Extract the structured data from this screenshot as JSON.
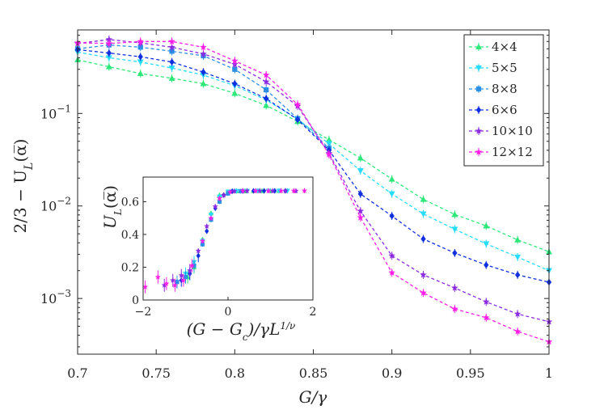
{
  "chart_data": [
    {
      "type": "line",
      "role": "main",
      "title": "",
      "xlabel": "G/γ",
      "ylabel_parts": {
        "a": "2/3 − U",
        "sub": "L",
        "b": "(α̅)"
      },
      "xlim": [
        0.7,
        1.0
      ],
      "ylim": [
        0.00025,
        0.8
      ],
      "yscale": "log",
      "xticks": [
        0.7,
        0.75,
        0.8,
        0.85,
        0.9,
        0.95,
        1.0
      ],
      "xtick_labels": [
        "0.7",
        "0.75",
        "0.8",
        "0.85",
        "0.9",
        "0.95",
        "1"
      ],
      "yticks": [
        0.001,
        0.01,
        0.1
      ],
      "ytick_labels": [
        {
          "base": "10",
          "exp": "−3"
        },
        {
          "base": "10",
          "exp": "−2"
        },
        {
          "base": "10",
          "exp": "−1"
        }
      ],
      "legend_position": "top-right",
      "series": [
        {
          "name": "4×4",
          "color": "#2ee87a",
          "marker": "triangle-up",
          "x": [
            0.7,
            0.72,
            0.74,
            0.76,
            0.78,
            0.8,
            0.82,
            0.84,
            0.86,
            0.88,
            0.9,
            0.92,
            0.94,
            0.96,
            0.98,
            1.0
          ],
          "y": [
            0.38,
            0.32,
            0.27,
            0.24,
            0.21,
            0.165,
            0.122,
            0.082,
            0.052,
            0.033,
            0.0195,
            0.0118,
            0.0081,
            0.0061,
            0.0043,
            0.0032
          ]
        },
        {
          "name": "5×5",
          "color": "#26dcff",
          "marker": "triangle-down",
          "x": [
            0.7,
            0.72,
            0.74,
            0.76,
            0.78,
            0.8,
            0.82,
            0.84,
            0.86,
            0.88,
            0.9,
            0.92,
            0.94,
            0.96,
            0.98,
            1.0
          ],
          "y": [
            0.46,
            0.4,
            0.36,
            0.31,
            0.26,
            0.2,
            0.14,
            0.087,
            0.047,
            0.024,
            0.0135,
            0.0082,
            0.0056,
            0.0039,
            0.0028,
            0.002
          ]
        },
        {
          "name": "8×8",
          "color": "#2b8fe6",
          "marker": "square",
          "x": [
            0.7,
            0.72,
            0.74,
            0.76,
            0.78,
            0.8,
            0.82,
            0.84,
            0.86
          ],
          "y": [
            0.5,
            0.55,
            0.52,
            0.47,
            0.42,
            0.3,
            0.18,
            0.088,
            0.042
          ]
        },
        {
          "name": "6×6",
          "color": "#1030e0",
          "marker": "diamond",
          "x": [
            0.7,
            0.72,
            0.74,
            0.76,
            0.78,
            0.8,
            0.82,
            0.84,
            0.86,
            0.88,
            0.9,
            0.92,
            0.94,
            0.96,
            0.98,
            1.0
          ],
          "y": [
            0.49,
            0.45,
            0.41,
            0.36,
            0.28,
            0.21,
            0.145,
            0.086,
            0.04,
            0.0135,
            0.0078,
            0.0044,
            0.0031,
            0.0023,
            0.0018,
            0.0015
          ]
        },
        {
          "name": "10×10",
          "color": "#8a2be2",
          "marker": "star",
          "x": [
            0.7,
            0.72,
            0.74,
            0.76,
            0.78,
            0.8,
            0.82,
            0.84,
            0.86,
            0.88,
            0.9,
            0.92,
            0.94,
            0.96,
            0.98,
            1.0
          ],
          "y": [
            0.57,
            0.63,
            0.58,
            0.52,
            0.44,
            0.34,
            0.22,
            0.12,
            0.037,
            0.0088,
            0.0029,
            0.0018,
            0.0013,
            0.00092,
            0.00068,
            0.00056
          ]
        },
        {
          "name": "12×12",
          "color": "#ff1ee8",
          "marker": "star",
          "x": [
            0.7,
            0.72,
            0.74,
            0.76,
            0.78,
            0.8,
            0.82,
            0.84,
            0.86,
            0.88,
            0.9,
            0.92,
            0.94,
            0.96,
            0.98,
            1.0
          ],
          "y": [
            0.58,
            0.57,
            0.6,
            0.6,
            0.52,
            0.37,
            0.26,
            0.125,
            0.036,
            0.0075,
            0.0019,
            0.00115,
            0.00077,
            0.00062,
            0.00044,
            0.00034
          ]
        }
      ]
    },
    {
      "type": "scatter",
      "role": "inset",
      "title": "",
      "xlabel_parts": {
        "a": "(G − G",
        "sub": "c",
        "b": ")/γL",
        "sup": "1/ν"
      },
      "ylabel_parts": {
        "a": "U",
        "sub": "L",
        "b": "(α̅)"
      },
      "xlim": [
        -2,
        2
      ],
      "ylim": [
        0,
        0.75
      ],
      "xticks": [
        -2,
        0,
        2
      ],
      "xtick_labels": [
        "−2",
        "0",
        "2"
      ],
      "yticks": [
        0,
        0.2,
        0.4,
        0.6
      ],
      "ytick_labels": [
        "0",
        "0.2",
        "0.4",
        "0.6"
      ],
      "series": [
        {
          "name": "4×4",
          "color": "#2ee87a",
          "x": [
            -0.95,
            -0.8,
            -0.6,
            -0.4,
            -0.2,
            0.0,
            0.2,
            0.4,
            0.6,
            0.8,
            1.0,
            1.2
          ],
          "y": [
            0.14,
            0.2,
            0.37,
            0.53,
            0.64,
            0.66,
            0.665,
            0.665,
            0.666,
            0.666,
            0.666,
            0.666
          ]
        },
        {
          "name": "5×5",
          "color": "#26dcff",
          "x": [
            -1.0,
            -0.8,
            -0.6,
            -0.4,
            -0.2,
            0.0,
            0.2,
            0.45,
            0.7,
            0.95,
            1.2,
            1.4
          ],
          "y": [
            0.16,
            0.23,
            0.36,
            0.52,
            0.63,
            0.66,
            0.665,
            0.665,
            0.666,
            0.666,
            0.666,
            0.666
          ]
        },
        {
          "name": "8×8",
          "color": "#2b8fe6",
          "x": [
            -1.2,
            -1.0,
            -0.8,
            -0.6,
            -0.4,
            -0.2,
            0.0,
            0.3
          ],
          "y": [
            0.11,
            0.14,
            0.21,
            0.34,
            0.49,
            0.6,
            0.65,
            0.664
          ]
        },
        {
          "name": "6×6",
          "color": "#1030e0",
          "x": [
            -1.1,
            -0.9,
            -0.7,
            -0.5,
            -0.3,
            -0.1,
            0.1,
            0.35,
            0.6,
            0.85,
            1.1,
            1.35
          ],
          "y": [
            0.12,
            0.16,
            0.27,
            0.42,
            0.56,
            0.64,
            0.664,
            0.665,
            0.666,
            0.666,
            0.666,
            0.666
          ]
        },
        {
          "name": "10×10",
          "color": "#8a2be2",
          "x": [
            -1.5,
            -1.3,
            -1.1,
            -0.9,
            -0.7,
            -0.5,
            -0.3,
            -0.1,
            0.15,
            0.45,
            0.75,
            1.05,
            1.35,
            1.6
          ],
          "y": [
            0.09,
            0.12,
            0.15,
            0.18,
            0.3,
            0.45,
            0.57,
            0.64,
            0.664,
            0.666,
            0.666,
            0.666,
            0.666,
            0.666
          ]
        },
        {
          "name": "12×12",
          "color": "#ff1ee8",
          "x": [
            -1.95,
            -1.65,
            -1.45,
            -1.25,
            -1.05,
            -0.85,
            -0.6,
            -0.4,
            -0.2,
            0.05,
            0.35,
            0.65,
            0.95,
            1.25,
            1.55,
            1.8
          ],
          "y": [
            0.08,
            0.14,
            0.1,
            0.09,
            0.12,
            0.21,
            0.36,
            0.5,
            0.62,
            0.66,
            0.666,
            0.666,
            0.666,
            0.666,
            0.666,
            0.667
          ]
        }
      ]
    }
  ]
}
